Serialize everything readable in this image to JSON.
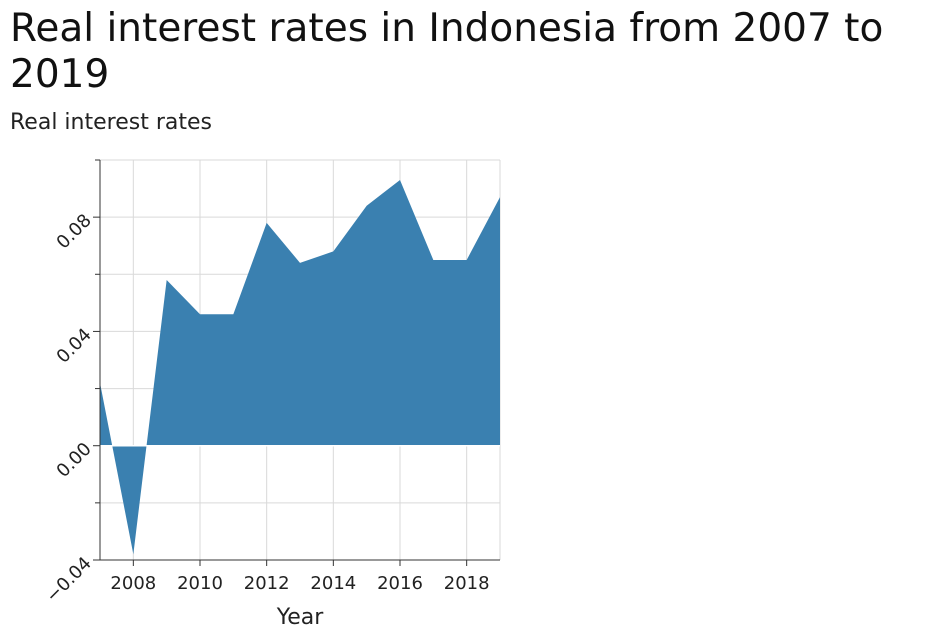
{
  "chart_data": {
    "type": "area",
    "title": "Real interest rates in Indonesia from 2007 to 2019",
    "ylabel": "Real interest rates",
    "xlabel": "Year",
    "x": [
      2007,
      2008,
      2009,
      2010,
      2011,
      2012,
      2013,
      2014,
      2015,
      2016,
      2017,
      2018,
      2019
    ],
    "values": [
      0.022,
      -0.038,
      0.058,
      0.046,
      0.046,
      0.078,
      0.064,
      0.068,
      0.084,
      0.093,
      0.065,
      0.065,
      0.087
    ],
    "xlim": [
      2007,
      2019
    ],
    "ylim": [
      -0.04,
      0.1
    ],
    "xticks": [
      2008,
      2010,
      2012,
      2014,
      2016,
      2018
    ],
    "xtick_labels": [
      "2008",
      "2010",
      "2012",
      "2014",
      "2016",
      "2018"
    ],
    "yticks": [
      -0.04,
      0.0,
      0.04,
      0.08
    ],
    "ytick_labels": [
      "−0.04",
      "0.00",
      "0.04",
      "0.08"
    ],
    "y_minor_ticks": [
      -0.02,
      0.02,
      0.06,
      0.1
    ],
    "grid": true,
    "fill_color": "#3a80b0",
    "grid_color": "#d9d9d9"
  }
}
